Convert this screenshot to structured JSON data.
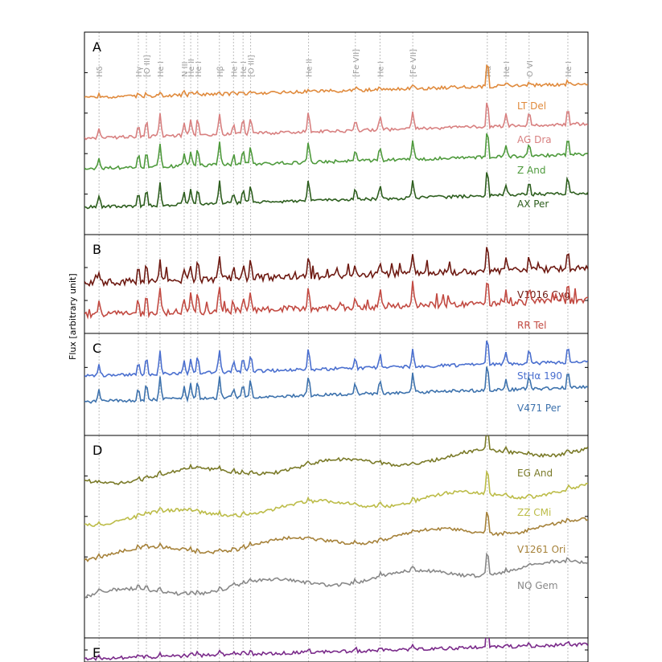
{
  "chart_data": {
    "type": "line",
    "ylabel": "Flux [arbitrary unit]",
    "grid": false,
    "lines": [
      {
        "name": "Hδ",
        "x": 0.029
      },
      {
        "name": "Hγ",
        "x": 0.107
      },
      {
        "name": "[O III]",
        "x": 0.123
      },
      {
        "name": "He I",
        "x": 0.15
      },
      {
        "name": "N III",
        "x": 0.198
      },
      {
        "name": "He II",
        "x": 0.211
      },
      {
        "name": "He I",
        "x": 0.225
      },
      {
        "name": "Hβ",
        "x": 0.268
      },
      {
        "name": "He I",
        "x": 0.296
      },
      {
        "name": "He I",
        "x": 0.315
      },
      {
        "name": "[O III]",
        "x": 0.33
      },
      {
        "name": "He II",
        "x": 0.445
      },
      {
        "name": "[Fe VII]",
        "x": 0.538
      },
      {
        "name": "He I",
        "x": 0.587
      },
      {
        "name": "[Fe VII]",
        "x": 0.652
      },
      {
        "name": "Hα",
        "x": 0.8
      },
      {
        "name": "He I",
        "x": 0.837
      },
      {
        "name": "O VI",
        "x": 0.883
      },
      {
        "name": "He I",
        "x": 0.96
      }
    ],
    "panels": [
      {
        "label": "A",
        "series": [
          {
            "name": "LT Del",
            "color": "#e08a3c"
          },
          {
            "name": "AG Dra",
            "color": "#d88080"
          },
          {
            "name": "Z And",
            "color": "#4e9a3c"
          },
          {
            "name": "AX Per",
            "color": "#2d5e1e"
          }
        ]
      },
      {
        "label": "B",
        "series": [
          {
            "name": "V1016 Cyg",
            "color": "#6e1a12"
          },
          {
            "name": "RR Tel",
            "color": "#c24a42"
          }
        ]
      },
      {
        "label": "C",
        "series": [
          {
            "name": "StHα 190",
            "color": "#4a6fcf"
          },
          {
            "name": "V471 Per",
            "color": "#3d72ad"
          }
        ]
      },
      {
        "label": "D",
        "series": [
          {
            "name": "EG And",
            "color": "#7a7a28"
          },
          {
            "name": "ZZ CMi",
            "color": "#bcbc48"
          },
          {
            "name": "V1261 Ori",
            "color": "#a6823a"
          },
          {
            "name": "NQ Gem",
            "color": "#888888"
          }
        ]
      },
      {
        "label": "E",
        "series": [
          {
            "name": "",
            "color": "#7a2a8a"
          }
        ]
      }
    ]
  }
}
